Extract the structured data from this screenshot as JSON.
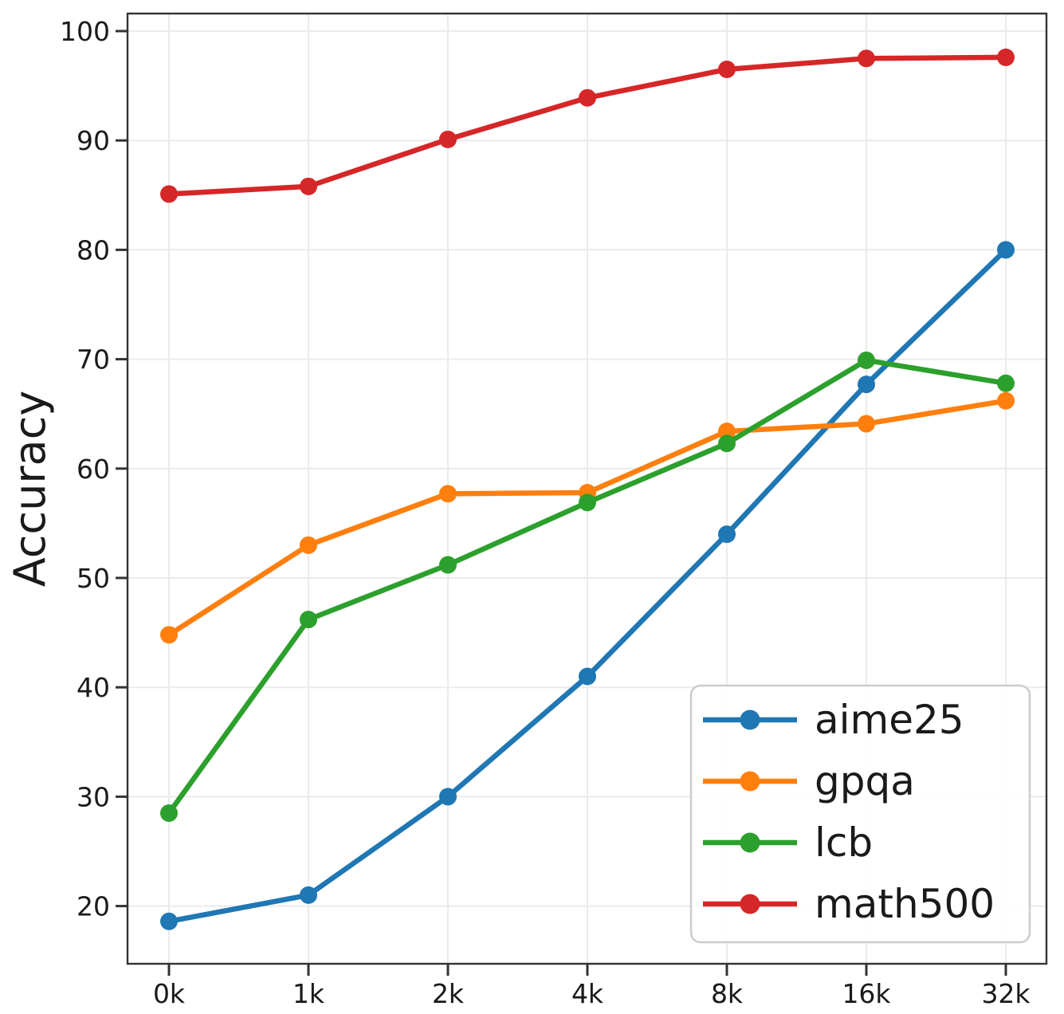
{
  "chart_data": {
    "type": "line",
    "title": "",
    "xlabel": "",
    "ylabel": "Accuracy",
    "categories": [
      "0k",
      "1k",
      "2k",
      "4k",
      "8k",
      "16k",
      "32k"
    ],
    "yticks": [
      20,
      30,
      40,
      50,
      60,
      70,
      80,
      90,
      100
    ],
    "ylim": [
      14.7,
      101.6
    ],
    "grid": true,
    "legend_position": "lower right",
    "series": [
      {
        "name": "aime25",
        "color": "#1f77b4",
        "values": [
          18.6,
          21.0,
          30.0,
          41.0,
          54.0,
          67.7,
          80.0
        ]
      },
      {
        "name": "gpqa",
        "color": "#ff7f0e",
        "values": [
          44.8,
          53.0,
          57.7,
          57.8,
          63.4,
          64.1,
          66.2
        ]
      },
      {
        "name": "lcb",
        "color": "#2ca02c",
        "values": [
          28.5,
          46.2,
          51.2,
          56.9,
          62.3,
          69.9,
          67.8
        ]
      },
      {
        "name": "math500",
        "color": "#d62728",
        "values": [
          85.1,
          85.8,
          90.1,
          93.9,
          96.5,
          97.5,
          97.6
        ]
      }
    ],
    "style": {
      "grid_color": "#ebebeb",
      "spine_color": "#333333",
      "background": "#ffffff",
      "legend_border_color": "#cccccc",
      "legend_fill": "#ffffff"
    }
  }
}
